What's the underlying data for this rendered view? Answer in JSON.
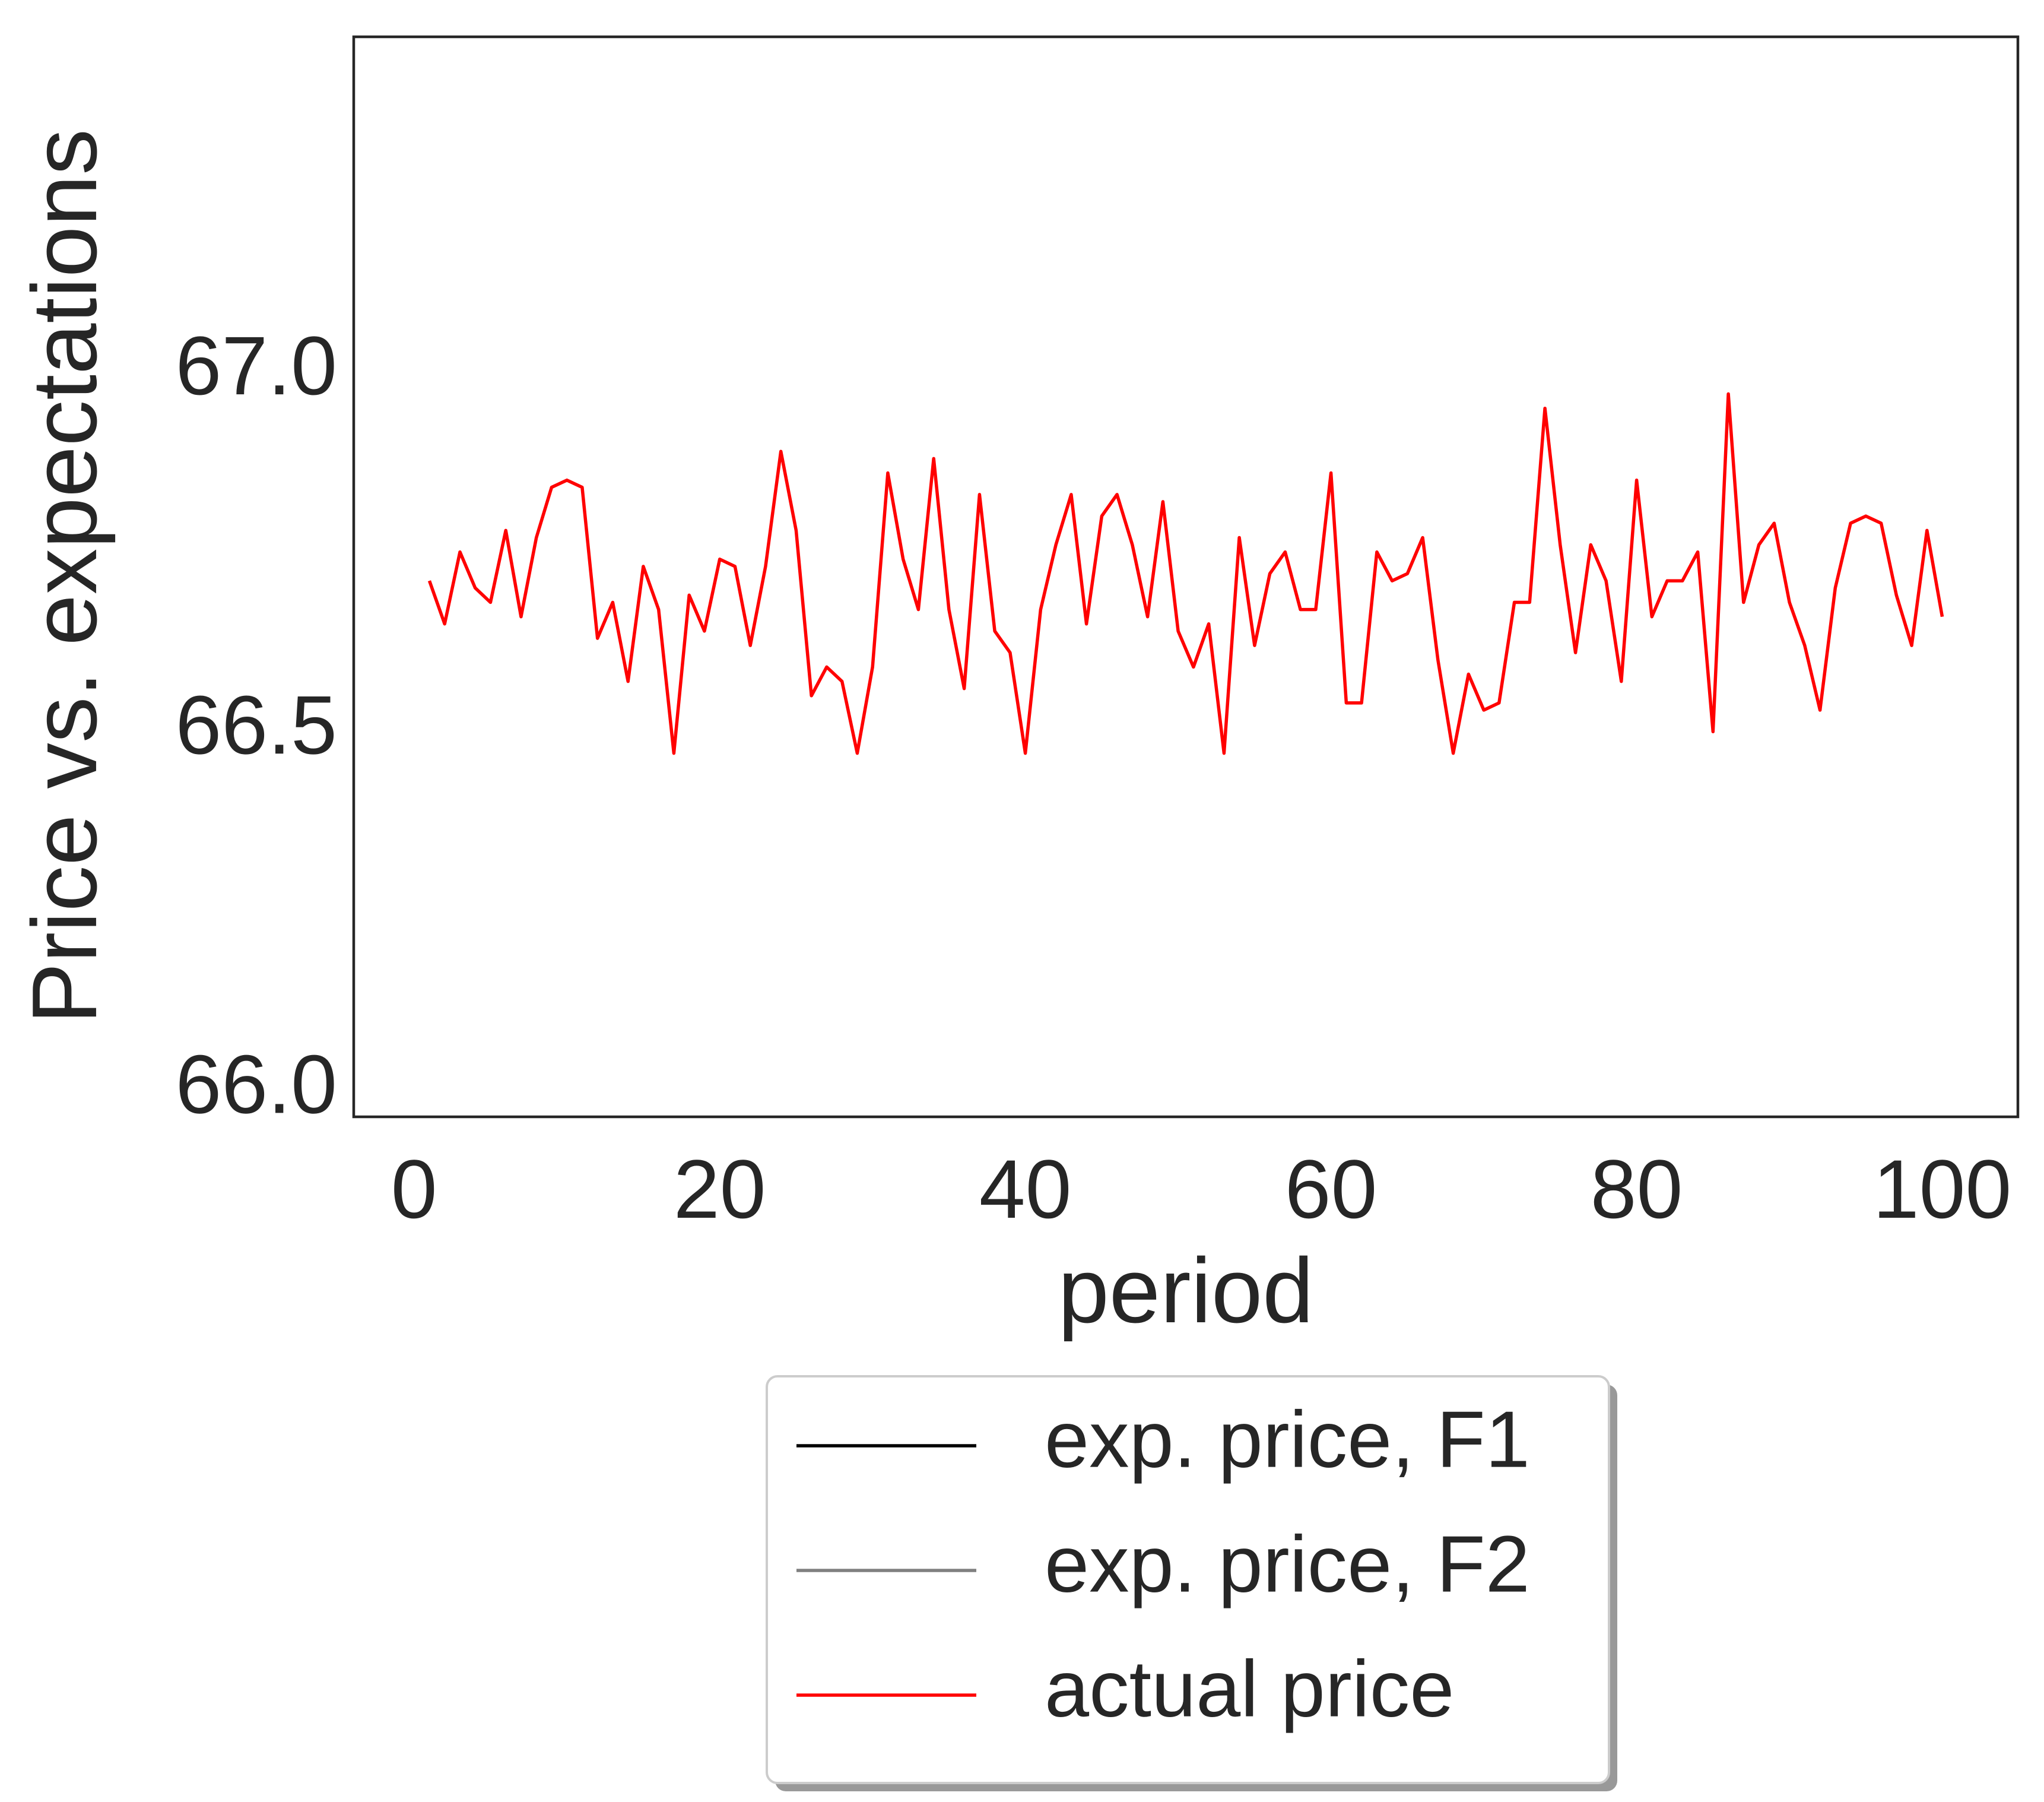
{
  "chart_data": {
    "type": "line",
    "x_label": "period",
    "y_label": "Price vs. expectations",
    "x": [
      1,
      2,
      3,
      4,
      5,
      6,
      7,
      8,
      9,
      10,
      11,
      12,
      13,
      14,
      15,
      16,
      17,
      18,
      19,
      20,
      21,
      22,
      23,
      24,
      25,
      26,
      27,
      28,
      29,
      30,
      31,
      32,
      33,
      34,
      35,
      36,
      37,
      38,
      39,
      40,
      41,
      42,
      43,
      44,
      45,
      46,
      47,
      48,
      49,
      50,
      51,
      52,
      53,
      54,
      55,
      56,
      57,
      58,
      59,
      60,
      61,
      62,
      63,
      64,
      65,
      66,
      67,
      68,
      69,
      70,
      71,
      72,
      73,
      74,
      75,
      76,
      77,
      78,
      79,
      80,
      81,
      82,
      83,
      84,
      85,
      86,
      87,
      88,
      89,
      90,
      91,
      92,
      93,
      94,
      95,
      96,
      97,
      98,
      99,
      100
    ],
    "series": [
      {
        "name": "exp. price, F1",
        "color": "#000000",
        "values": [
          null,
          null,
          null,
          null,
          null,
          null,
          null,
          null,
          null,
          null,
          null,
          null,
          null,
          null,
          null,
          null,
          null,
          null,
          null,
          null,
          null,
          null,
          null,
          null,
          null,
          null,
          null,
          null,
          null,
          null,
          null,
          null,
          null,
          null,
          null,
          null,
          null,
          null,
          null,
          null,
          null,
          null,
          null,
          null,
          null,
          null,
          null,
          null,
          null,
          null,
          null,
          null,
          null,
          null,
          null,
          null,
          null,
          null,
          null,
          null,
          null,
          null,
          null,
          null,
          null,
          null,
          null,
          null,
          null,
          null,
          null,
          null,
          null,
          null,
          null,
          null,
          null,
          null,
          null,
          null,
          null,
          null,
          null,
          null,
          null,
          null,
          null,
          null,
          null,
          null,
          null,
          null,
          null,
          null,
          null,
          null,
          null,
          null,
          null,
          null
        ]
      },
      {
        "name": "exp. price, F2",
        "color": "#808080",
        "values": [
          null,
          null,
          null,
          null,
          null,
          null,
          null,
          null,
          null,
          null,
          null,
          null,
          null,
          null,
          null,
          null,
          null,
          null,
          null,
          null,
          null,
          null,
          null,
          null,
          null,
          null,
          null,
          null,
          null,
          null,
          null,
          null,
          null,
          null,
          null,
          null,
          null,
          null,
          null,
          null,
          null,
          null,
          null,
          null,
          null,
          null,
          null,
          null,
          null,
          null,
          null,
          null,
          null,
          null,
          null,
          null,
          null,
          null,
          null,
          null,
          null,
          null,
          null,
          null,
          null,
          null,
          null,
          null,
          null,
          null,
          null,
          null,
          null,
          null,
          null,
          null,
          null,
          null,
          null,
          null,
          null,
          null,
          null,
          null,
          null,
          null,
          null,
          null,
          null,
          null,
          null,
          null,
          null,
          null,
          null,
          null,
          null,
          null,
          null,
          null
        ]
      },
      {
        "name": "actual price",
        "color": "#ff0000",
        "values": [
          66.71,
          66.65,
          66.75,
          66.7,
          66.68,
          66.78,
          66.66,
          66.77,
          66.84,
          66.85,
          66.84,
          66.63,
          66.68,
          66.57,
          66.73,
          66.67,
          66.47,
          66.69,
          66.64,
          66.74,
          66.73,
          66.62,
          66.73,
          66.89,
          66.78,
          66.55,
          66.59,
          66.57,
          66.47,
          66.59,
          66.86,
          66.74,
          66.67,
          66.88,
          66.67,
          66.56,
          66.83,
          66.64,
          66.61,
          66.47,
          66.67,
          66.76,
          66.83,
          66.65,
          66.8,
          66.83,
          66.76,
          66.66,
          66.82,
          66.64,
          66.59,
          66.65,
          66.47,
          66.77,
          66.62,
          66.72,
          66.75,
          66.67,
          66.67,
          66.86,
          66.54,
          66.54,
          66.75,
          66.71,
          66.72,
          66.77,
          66.6,
          66.47,
          66.58,
          66.53,
          66.54,
          66.68,
          66.68,
          66.95,
          66.76,
          66.61,
          66.76,
          66.71,
          66.57,
          66.85,
          66.66,
          66.71,
          66.71,
          66.75,
          66.5,
          66.97,
          66.68,
          66.76,
          66.79,
          66.68,
          66.62,
          66.53,
          66.7,
          66.79,
          66.8,
          66.79,
          66.69,
          66.62,
          66.78,
          66.66
        ]
      }
    ],
    "xlim": [
      -3.95,
      104.95
    ],
    "ylim": [
      65.964,
      67.467
    ],
    "xticks": [
      0,
      20,
      40,
      60,
      80,
      100
    ],
    "yticks": [
      {
        "value": 66,
        "label": "66.0"
      },
      66.5,
      {
        "value": 67,
        "label": "67.0"
      }
    ],
    "grid": false,
    "legend": "below"
  }
}
